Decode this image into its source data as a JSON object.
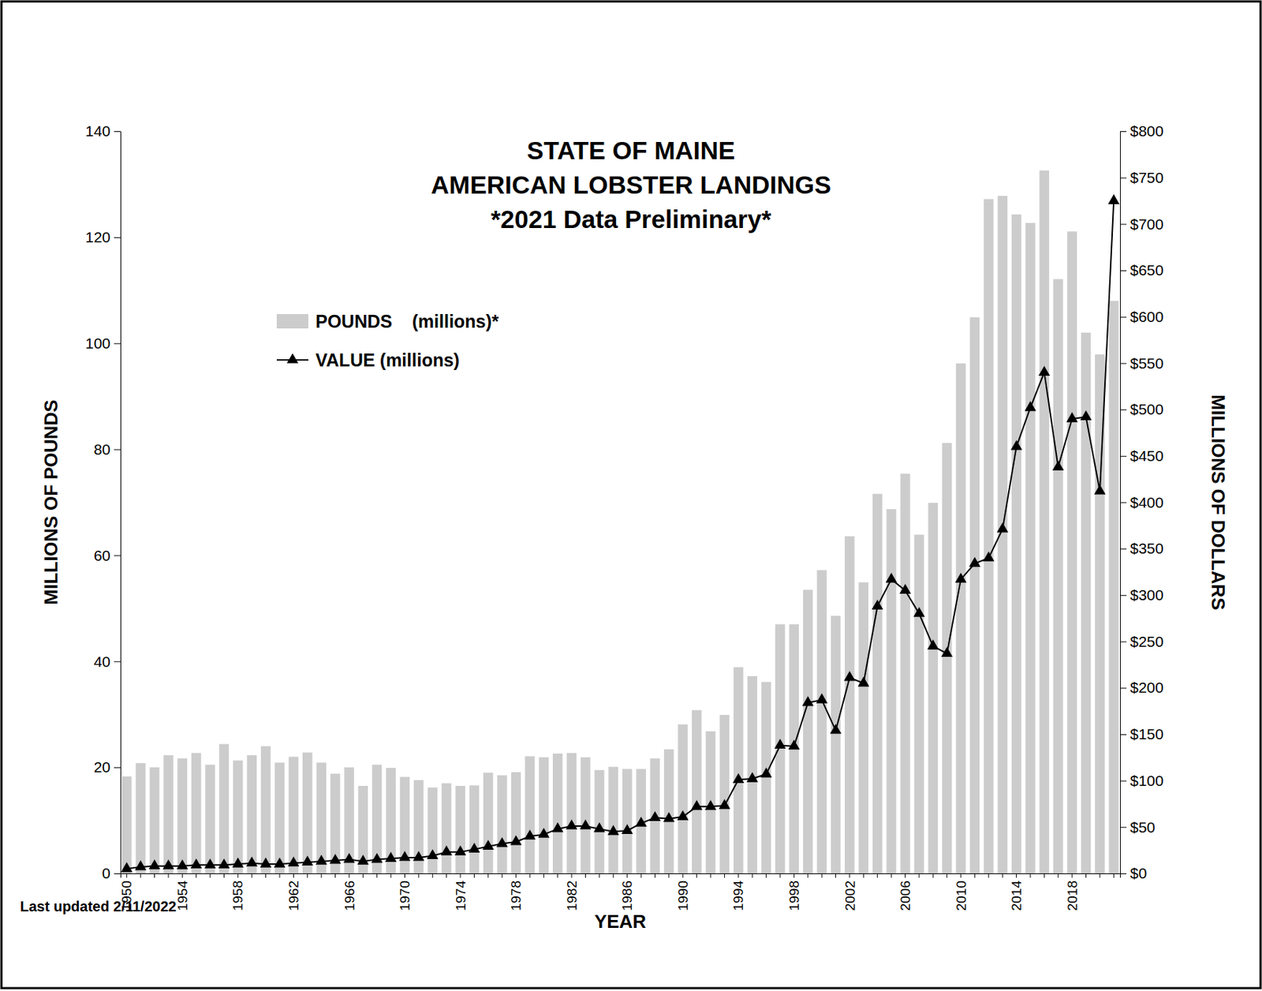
{
  "chart_data": {
    "type": "bar",
    "title": [
      "STATE OF MAINE",
      "AMERICAN LOBSTER LANDINGS"
    ],
    "subtitle": "*2021 Data Preliminary*",
    "x_label": "YEAR",
    "y_label": "MILLIONS OF POUNDS",
    "y2_label": "MILLIONS OF DOLLARS",
    "annotations": [
      "Last updated 2/11/2022"
    ],
    "legend": "upper left",
    "categories": [
      1950,
      null,
      null,
      null,
      1954,
      null,
      null,
      null,
      1958,
      null,
      null,
      null,
      1962,
      null,
      null,
      null,
      1966,
      null,
      null,
      null,
      1970,
      null,
      null,
      null,
      1974,
      null,
      null,
      null,
      1978,
      null,
      null,
      null,
      1982,
      null,
      null,
      null,
      1986,
      null,
      null,
      null,
      1990,
      null,
      null,
      null,
      1994,
      null,
      null,
      null,
      1998,
      null,
      null,
      null,
      2002,
      null,
      null,
      null,
      2006,
      null,
      null,
      null,
      2010,
      null,
      null,
      null,
      2014,
      null,
      null,
      null,
      2018,
      null,
      null,
      null
    ],
    "ylim": [
      0,
      140
    ],
    "yticks": [
      0,
      20,
      40,
      60,
      80,
      100,
      120,
      140
    ],
    "y2lim": [
      0,
      800
    ],
    "y2ticks": [
      {
        "value": 0,
        "label": "$0"
      },
      {
        "value": 50,
        "label": "$50"
      },
      {
        "value": 100,
        "label": "$100"
      },
      {
        "value": 150,
        "label": "$150"
      },
      {
        "value": 200,
        "label": "$200"
      },
      {
        "value": 250,
        "label": "$250"
      },
      {
        "value": 300,
        "label": "$300"
      },
      {
        "value": 350,
        "label": "$350"
      },
      {
        "value": 400,
        "label": "$400"
      },
      {
        "value": 450,
        "label": "$450"
      },
      {
        "value": 500,
        "label": "$500"
      },
      {
        "value": 550,
        "label": "$550"
      },
      {
        "value": 600,
        "label": "$600"
      },
      {
        "value": 650,
        "label": "$650"
      },
      {
        "value": 700,
        "label": "$700"
      },
      {
        "value": 750,
        "label": "$750"
      },
      {
        "value": 800,
        "label": "$800"
      }
    ],
    "series": [
      {
        "name": "POUNDS    (millions)*",
        "type": "bar",
        "color": "#cccccc",
        "values": [
          18.3,
          20.8,
          20.0,
          22.3,
          21.7,
          22.7,
          20.5,
          24.4,
          21.3,
          22.3,
          24.0,
          20.9,
          22.0,
          22.8,
          20.9,
          18.8,
          20.0,
          16.5,
          20.5,
          19.9,
          18.2,
          17.6,
          16.2,
          17.0,
          16.5,
          16.6,
          19.0,
          18.5,
          19.1,
          22.1,
          21.9,
          22.6,
          22.7,
          21.9,
          19.5,
          20.1,
          19.7,
          19.7,
          21.7,
          23.4,
          28.1,
          30.8,
          26.8,
          29.9,
          38.9,
          37.2,
          36.1,
          47.0,
          47.0,
          53.5,
          57.2,
          48.6,
          63.6,
          54.9,
          71.6,
          68.7,
          75.4,
          63.9,
          69.9,
          81.2,
          96.2,
          104.9,
          127.2,
          127.8,
          124.3,
          122.7,
          132.6,
          112.1,
          121.1,
          102.0,
          97.9,
          108.0
        ]
      },
      {
        "name": "VALUE (millions)",
        "type": "line",
        "axis": "y2",
        "color": "#000000",
        "marker": "triangle",
        "values": [
          5,
          7,
          8,
          8,
          8,
          9,
          9,
          9,
          10,
          11,
          10,
          10,
          11,
          12,
          13,
          14,
          15,
          13,
          15,
          16,
          17,
          17,
          19,
          23,
          23,
          26,
          29,
          32,
          34,
          40,
          42,
          48,
          51,
          51,
          48,
          45,
          46,
          54,
          60,
          59,
          61,
          72,
          72,
          73,
          101,
          102,
          107,
          138,
          137,
          184,
          187,
          154,
          211,
          205,
          288,
          317,
          305,
          280,
          245,
          237,
          317,
          334,
          340,
          371,
          460,
          502,
          540,
          438,
          490,
          492,
          412,
          725
        ]
      }
    ]
  }
}
